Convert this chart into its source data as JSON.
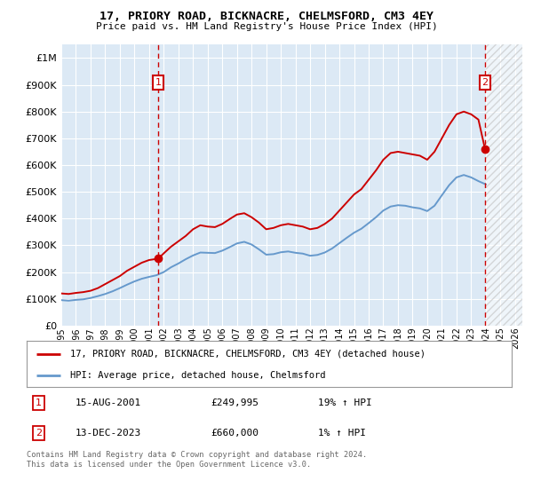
{
  "title1": "17, PRIORY ROAD, BICKNACRE, CHELMSFORD, CM3 4EY",
  "title2": "Price paid vs. HM Land Registry's House Price Index (HPI)",
  "legend_line1": "17, PRIORY ROAD, BICKNACRE, CHELMSFORD, CM3 4EY (detached house)",
  "legend_line2": "HPI: Average price, detached house, Chelmsford",
  "annotation1_date": "15-AUG-2001",
  "annotation1_price": "£249,995",
  "annotation1_hpi": "19% ↑ HPI",
  "annotation2_date": "13-DEC-2023",
  "annotation2_price": "£660,000",
  "annotation2_hpi": "1% ↑ HPI",
  "footer": "Contains HM Land Registry data © Crown copyright and database right 2024.\nThis data is licensed under the Open Government Licence v3.0.",
  "property_color": "#cc0000",
  "hpi_color": "#6699cc",
  "annotation_color": "#cc0000",
  "bg_color": "#dce9f5",
  "xmin": 1995.0,
  "xmax": 2026.5,
  "ymin": 0,
  "ymax": 1050000,
  "yticks": [
    0,
    100000,
    200000,
    300000,
    400000,
    500000,
    600000,
    700000,
    800000,
    900000,
    1000000
  ],
  "sale1_x": 2001.62,
  "sale1_y": 249995,
  "sale2_x": 2023.95,
  "sale2_y": 660000,
  "property_x": [
    1995.0,
    1995.5,
    1996.0,
    1996.5,
    1997.0,
    1997.5,
    1998.0,
    1998.5,
    1999.0,
    1999.5,
    2000.0,
    2000.5,
    2001.0,
    2001.62,
    2002.0,
    2002.5,
    2003.0,
    2003.5,
    2004.0,
    2004.5,
    2005.0,
    2005.5,
    2006.0,
    2006.5,
    2007.0,
    2007.5,
    2008.0,
    2008.5,
    2009.0,
    2009.5,
    2010.0,
    2010.5,
    2011.0,
    2011.5,
    2012.0,
    2012.5,
    2013.0,
    2013.5,
    2014.0,
    2014.5,
    2015.0,
    2015.5,
    2016.0,
    2016.5,
    2017.0,
    2017.5,
    2018.0,
    2018.5,
    2019.0,
    2019.5,
    2020.0,
    2020.5,
    2021.0,
    2021.5,
    2022.0,
    2022.5,
    2023.0,
    2023.5,
    2023.95
  ],
  "property_y": [
    120000,
    118000,
    122000,
    125000,
    130000,
    140000,
    155000,
    170000,
    185000,
    205000,
    220000,
    235000,
    245000,
    249995,
    270000,
    295000,
    315000,
    335000,
    360000,
    375000,
    370000,
    368000,
    380000,
    398000,
    415000,
    420000,
    405000,
    385000,
    360000,
    365000,
    375000,
    380000,
    375000,
    370000,
    360000,
    365000,
    380000,
    400000,
    430000,
    460000,
    490000,
    510000,
    545000,
    580000,
    620000,
    645000,
    650000,
    645000,
    640000,
    635000,
    620000,
    650000,
    700000,
    750000,
    790000,
    800000,
    790000,
    770000,
    660000
  ],
  "hpi_x": [
    1995.0,
    1995.5,
    1996.0,
    1996.5,
    1997.0,
    1997.5,
    1998.0,
    1998.5,
    1999.0,
    1999.5,
    2000.0,
    2000.5,
    2001.0,
    2001.5,
    2002.0,
    2002.5,
    2003.0,
    2003.5,
    2004.0,
    2004.5,
    2005.0,
    2005.5,
    2006.0,
    2006.5,
    2007.0,
    2007.5,
    2008.0,
    2008.5,
    2009.0,
    2009.5,
    2010.0,
    2010.5,
    2011.0,
    2011.5,
    2012.0,
    2012.5,
    2013.0,
    2013.5,
    2014.0,
    2014.5,
    2015.0,
    2015.5,
    2016.0,
    2016.5,
    2017.0,
    2017.5,
    2018.0,
    2018.5,
    2019.0,
    2019.5,
    2020.0,
    2020.5,
    2021.0,
    2021.5,
    2022.0,
    2022.5,
    2023.0,
    2023.5,
    2024.0
  ],
  "hpi_y": [
    95000,
    93000,
    96000,
    98000,
    103000,
    110000,
    118000,
    128000,
    140000,
    153000,
    165000,
    175000,
    182000,
    188000,
    200000,
    218000,
    232000,
    248000,
    262000,
    273000,
    272000,
    271000,
    280000,
    293000,
    307000,
    313000,
    303000,
    285000,
    265000,
    267000,
    274000,
    277000,
    272000,
    269000,
    261000,
    264000,
    273000,
    288000,
    308000,
    328000,
    347000,
    362000,
    383000,
    405000,
    430000,
    445000,
    450000,
    448000,
    442000,
    438000,
    428000,
    448000,
    487000,
    525000,
    554000,
    563000,
    554000,
    540000,
    528000
  ]
}
